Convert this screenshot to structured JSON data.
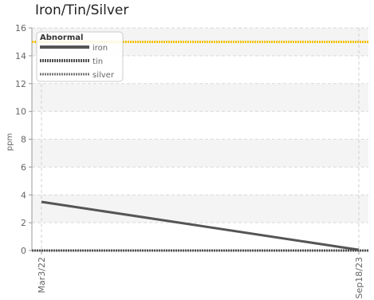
{
  "chart_data": {
    "type": "line",
    "title": "Iron/Tin/Silver",
    "xlabel": "",
    "ylabel": "ppm",
    "ylim": [
      0,
      16
    ],
    "yticks": [
      0,
      2,
      4,
      6,
      8,
      10,
      12,
      14,
      16
    ],
    "x": [
      "Mar3/22",
      "Sep18/23"
    ],
    "series": [
      {
        "name": "iron",
        "values": [
          3.5,
          0.05
        ],
        "color": "#555555"
      },
      {
        "name": "tin",
        "values": [
          0,
          0
        ],
        "color": "#555555"
      },
      {
        "name": "silver",
        "values": [
          0,
          0
        ],
        "color": "#777777"
      }
    ],
    "threshold": {
      "name": "Abnormal",
      "value": 15,
      "color": "#f2c200"
    },
    "legend": {
      "title": "Abnormal",
      "position": "top-left"
    },
    "grid": true
  }
}
